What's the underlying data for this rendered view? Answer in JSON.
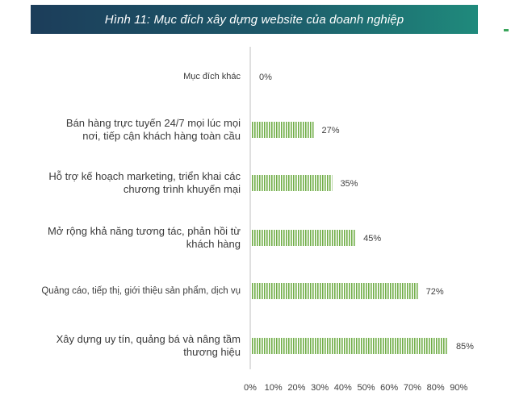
{
  "chart_data": {
    "type": "bar",
    "orientation": "horizontal",
    "title": "Hình 11: Mục đích xây dựng website của doanh nghiệp",
    "categories": [
      "Mục đích khác",
      "Bán hàng trực tuyến 24/7 mọi lúc mọi nơi, tiếp cận khách hàng toàn cầu",
      "Hỗ trợ kế hoạch marketing, triển khai các chương trình khuyến mại",
      "Mở rộng khả năng tương tác, phản hồi từ khách hàng",
      "Quảng cáo, tiếp thị, giới thiệu sản phẩm, dịch vụ",
      "Xây dựng uy tín, quảng bá và nâng tầm thương hiệu"
    ],
    "values": [
      0,
      27,
      35,
      45,
      72,
      85
    ],
    "data_labels": [
      "0%",
      "27%",
      "35%",
      "45%",
      "72%",
      "85%"
    ],
    "xlim": [
      0,
      90
    ],
    "x_ticks": [
      "0%",
      "10%",
      "20%",
      "30%",
      "40%",
      "50%",
      "60%",
      "70%",
      "80%",
      "90%"
    ],
    "bar_color": "#70ad47",
    "bar_pattern": "vertical-stripes",
    "grid": false,
    "legend": "none"
  }
}
